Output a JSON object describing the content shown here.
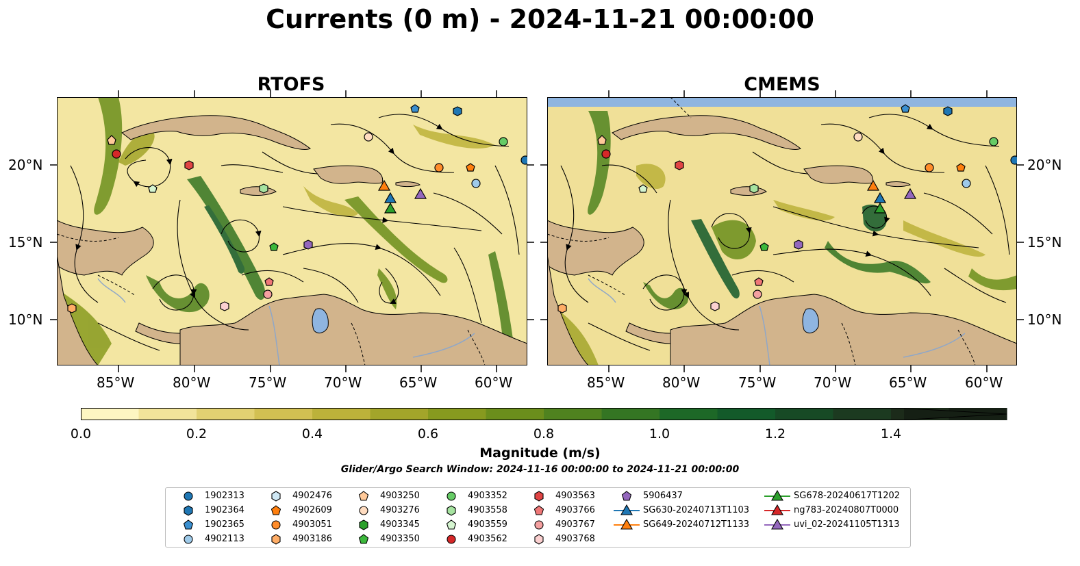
{
  "title": "Currents (0 m) - 2024-11-21 00:00:00",
  "panels": [
    {
      "title": "RTOFS"
    },
    {
      "title": "CMEMS"
    }
  ],
  "axes": {
    "lon_ticks": [
      "85°W",
      "80°W",
      "75°W",
      "70°W",
      "65°W",
      "60°W"
    ],
    "lat_ticks": [
      "20°N",
      "15°N",
      "10°N"
    ]
  },
  "colorbar": {
    "label": "Magnitude (m/s)",
    "ticks": [
      "0.0",
      "0.2",
      "0.4",
      "0.6",
      "0.8",
      "1.0",
      "1.2",
      "1.4"
    ],
    "colors": [
      "#fdf6c2",
      "#f2e49a",
      "#e2d172",
      "#d2c052",
      "#bcb23a",
      "#a3a52a",
      "#879a1f",
      "#6b8e1c",
      "#4f821f",
      "#347523",
      "#1d6827",
      "#135a2a",
      "#174a25",
      "#1c3a20",
      "#1c2b1a",
      "#151f14"
    ]
  },
  "search_window": "Glider/Argo Search Window: 2024-11-16 00:00:00 to 2024-11-21 00:00:00",
  "legend": [
    {
      "label": "1902313",
      "marker": "circle",
      "color": "#1f77b4"
    },
    {
      "label": "1902364",
      "marker": "hexagon",
      "color": "#1f77b4"
    },
    {
      "label": "1902365",
      "marker": "pentagon",
      "color": "#3a8fd0"
    },
    {
      "label": "4902113",
      "marker": "circle",
      "color": "#9ecae9"
    },
    {
      "label": "4902476",
      "marker": "hexagon",
      "color": "#cfe8f5"
    },
    {
      "label": "4902609",
      "marker": "pentagon",
      "color": "#ff7f0e"
    },
    {
      "label": "4903051",
      "marker": "circle",
      "color": "#ff8c2a"
    },
    {
      "label": "4903186",
      "marker": "hexagon",
      "color": "#ffad66"
    },
    {
      "label": "4903250",
      "marker": "pentagon",
      "color": "#ffc999"
    },
    {
      "label": "4903276",
      "marker": "circle",
      "color": "#ffdcc0"
    },
    {
      "label": "4903345",
      "marker": "hexagon",
      "color": "#2ca02c"
    },
    {
      "label": "4903350",
      "marker": "pentagon",
      "color": "#3cb83c"
    },
    {
      "label": "4903352",
      "marker": "circle",
      "color": "#66cc66"
    },
    {
      "label": "4903558",
      "marker": "hexagon",
      "color": "#a6e3a0"
    },
    {
      "label": "4903559",
      "marker": "pentagon",
      "color": "#d5f5d0"
    },
    {
      "label": "4903562",
      "marker": "circle",
      "color": "#d62728"
    },
    {
      "label": "4903563",
      "marker": "hexagon",
      "color": "#e04444"
    },
    {
      "label": "4903766",
      "marker": "pentagon",
      "color": "#ef7777"
    },
    {
      "label": "4903767",
      "marker": "circle",
      "color": "#f4a0a0"
    },
    {
      "label": "4903768",
      "marker": "hexagon",
      "color": "#fbd0d0"
    },
    {
      "label": "5906437",
      "marker": "pentagon",
      "color": "#9467bd"
    },
    {
      "label": "SG630-20240713T1103",
      "marker": "triangle",
      "color": "#1f77b4"
    },
    {
      "label": "SG649-20240712T1133",
      "marker": "triangle",
      "color": "#ff7f0e"
    },
    {
      "label": "SG678-20240617T1202",
      "marker": "triangle",
      "color": "#2ca02c"
    },
    {
      "label": "ng783-20240807T0000",
      "marker": "triangle",
      "color": "#d62728"
    },
    {
      "label": "uvi_02-20241105T1313",
      "marker": "triangle",
      "color": "#9467bd"
    }
  ]
}
